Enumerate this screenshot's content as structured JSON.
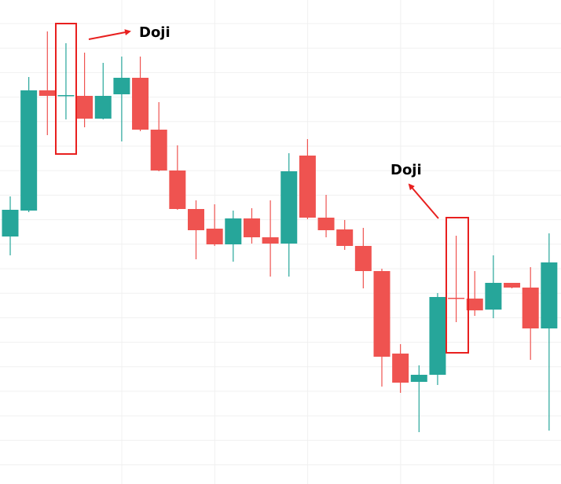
{
  "chart_data": {
    "type": "candlestick",
    "ylim": [
      0,
      616
    ],
    "up_color": "#26a69a",
    "down_color": "#ef5350",
    "open": [
      315,
      348,
      501,
      494,
      494,
      465,
      496,
      517,
      451,
      399,
      350,
      325,
      305,
      338,
      314,
      306,
      418,
      339,
      324,
      303,
      271,
      166,
      130,
      139,
      237,
      236,
      222,
      256,
      250,
      198
    ],
    "high": [
      366,
      518,
      576,
      561,
      549,
      536,
      544,
      544,
      486,
      431,
      361,
      356,
      348,
      351,
      361,
      421,
      439,
      368,
      336,
      326,
      274,
      178,
      151,
      243,
      316,
      271,
      291,
      256,
      276,
      319
    ],
    "low": [
      291,
      346,
      444,
      464,
      454,
      464,
      436,
      449,
      398,
      349,
      286,
      303,
      283,
      306,
      264,
      264,
      337,
      314,
      298,
      249,
      124,
      116,
      66,
      126,
      206,
      214,
      211,
      249,
      158,
      68
    ],
    "close": [
      349,
      501,
      494,
      495,
      465,
      494,
      517,
      451,
      399,
      350,
      323,
      305,
      338,
      314,
      306,
      398,
      339,
      323,
      303,
      271,
      162,
      129,
      139,
      238,
      236,
      221,
      256,
      250,
      198,
      282
    ],
    "annotations": [
      {
        "text": "Doji"
      },
      {
        "text": "Doji"
      }
    ],
    "annotation_color": "#e8201f"
  }
}
